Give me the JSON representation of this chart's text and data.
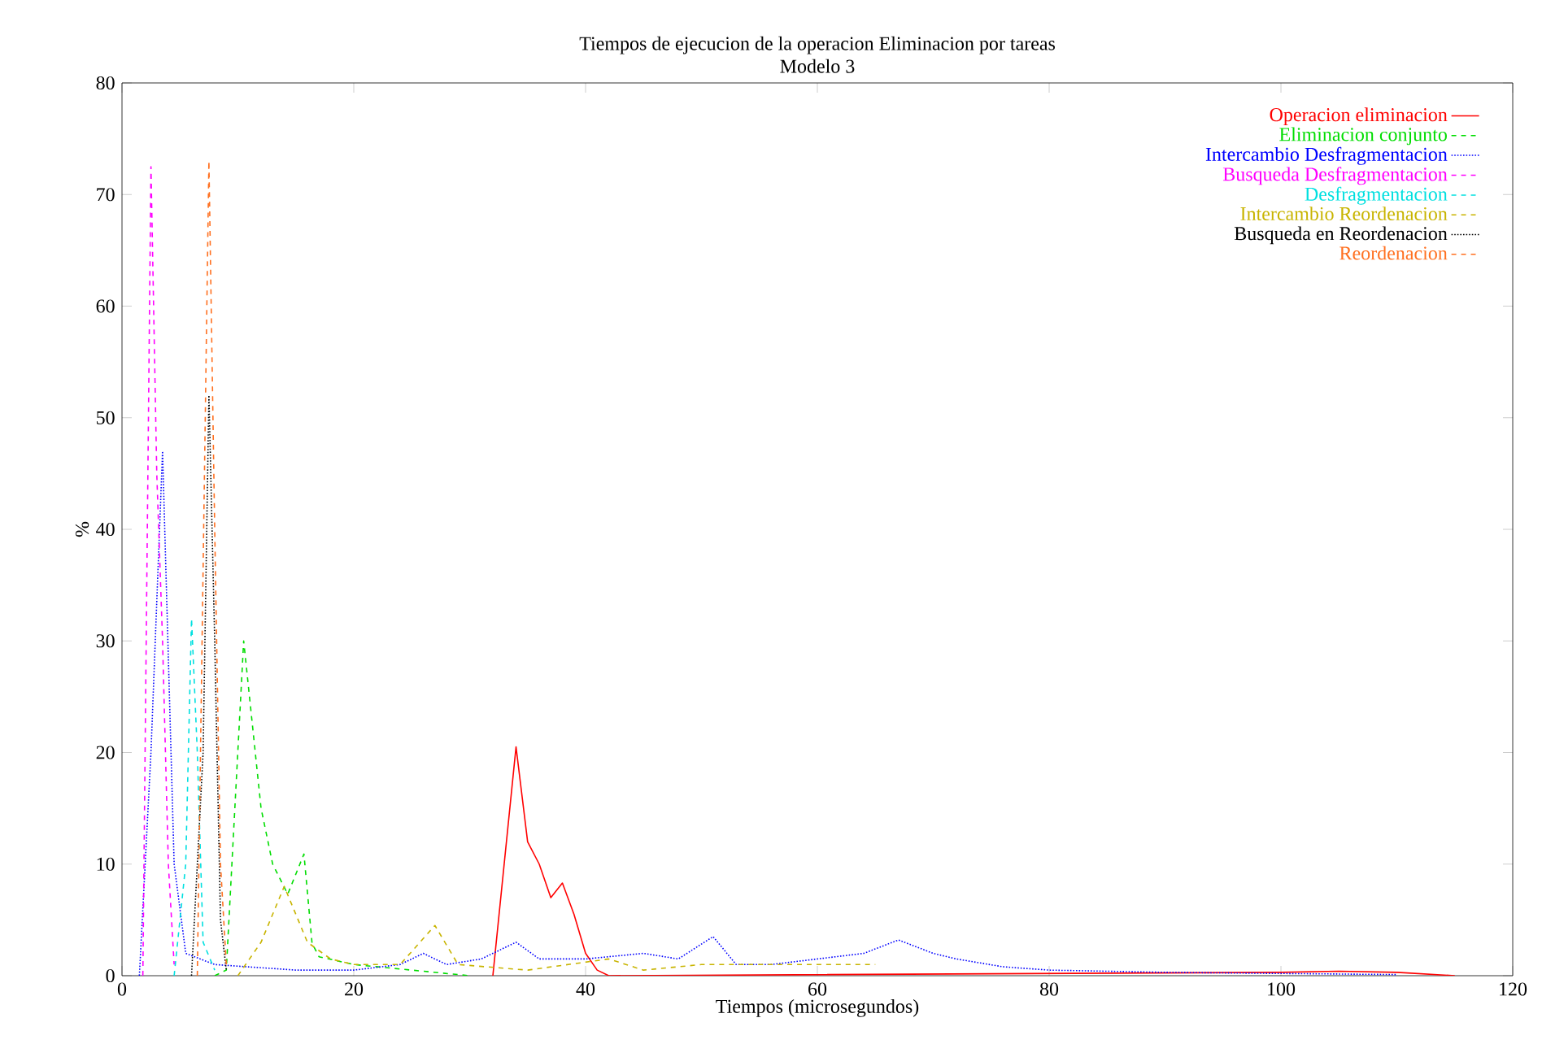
{
  "chart_data": {
    "type": "line",
    "title": "Tiempos de ejecucion de la operacion Eliminacion por tareas",
    "subtitle": "Modelo 3",
    "xlabel": "Tiempos (microsegundos)",
    "ylabel": "%",
    "xlim": [
      0,
      120
    ],
    "ylim": [
      0,
      80
    ],
    "xticks": [
      0,
      20,
      40,
      60,
      80,
      100,
      120
    ],
    "yticks": [
      0,
      10,
      20,
      30,
      40,
      50,
      60,
      70,
      80
    ],
    "grid": false,
    "legend": "top right",
    "marker": "none",
    "series": [
      {
        "name": "Operacion eliminacion",
        "color": "#ff0000",
        "line_style": "solid",
        "x": [
          32,
          34,
          35,
          36,
          37,
          38,
          39,
          40,
          41,
          42,
          100,
          105,
          110,
          115
        ],
        "values": [
          0,
          20.5,
          12,
          10,
          7,
          8.3,
          5.5,
          2,
          0.5,
          0,
          0.3,
          0.4,
          0.3,
          0
        ]
      },
      {
        "name": "Eliminacion conjunto",
        "color": "#00dd00",
        "line_style": "dashed",
        "x": [
          8,
          9,
          10.5,
          12,
          13,
          14.3,
          15.7,
          16.4,
          17,
          20,
          25,
          30
        ],
        "values": [
          0,
          0.5,
          30,
          15,
          10,
          7.3,
          10.9,
          2.9,
          1.7,
          1,
          0.5,
          0
        ]
      },
      {
        "name": "Intercambio Desfragmentacion",
        "color": "#0000ff",
        "line_style": "dotted",
        "x": [
          1.5,
          2.5,
          3.5,
          4.5,
          5.5,
          8,
          15,
          20,
          24,
          26,
          28,
          31,
          34,
          36,
          40,
          45,
          48,
          51,
          53,
          56,
          60,
          64,
          67,
          70,
          72,
          76,
          80,
          90,
          100,
          110
        ],
        "values": [
          0,
          20,
          47,
          10,
          2,
          1,
          0.5,
          0.5,
          1,
          2,
          1,
          1.5,
          3,
          1.5,
          1.5,
          2,
          1.5,
          3.5,
          1,
          1,
          1.5,
          2,
          3.2,
          2,
          1.5,
          0.8,
          0.5,
          0.3,
          0.2,
          0.1
        ]
      },
      {
        "name": "Busqueda Desfragmentacion",
        "color": "#ff00ff",
        "line_style": "dashed",
        "x": [
          1.8,
          2.5,
          3,
          3.5,
          4,
          4.5
        ],
        "values": [
          0,
          72.5,
          45,
          30,
          10,
          1
        ]
      },
      {
        "name": "Desfragmentacion",
        "color": "#00e0e0",
        "line_style": "dashed",
        "x": [
          4.5,
          5.5,
          6,
          6.5,
          7,
          8
        ],
        "values": [
          0,
          10,
          32,
          20,
          3,
          0.5
        ]
      },
      {
        "name": "Intercambio Reordenacion",
        "color": "#c8b400",
        "line_style": "dashed",
        "x": [
          10,
          12,
          14,
          16,
          18,
          20,
          24,
          27,
          29,
          35,
          42,
          45,
          50,
          60,
          65
        ],
        "values": [
          0,
          3,
          8,
          3,
          1.5,
          1,
          1,
          4.5,
          1,
          0.5,
          1.5,
          0.5,
          1,
          1,
          1
        ]
      },
      {
        "name": "Busqueda en Reordenacion",
        "color": "#000000",
        "line_style": "dotted",
        "x": [
          6,
          7,
          7.5,
          8,
          8.5,
          9
        ],
        "values": [
          0,
          20,
          52,
          30,
          5,
          0.5
        ]
      },
      {
        "name": "Reordenacion",
        "color": "#ff7020",
        "line_style": "dashed",
        "x": [
          6.5,
          7.5,
          8,
          8.5,
          9
        ],
        "values": [
          0,
          73,
          40,
          10,
          1
        ]
      }
    ]
  }
}
